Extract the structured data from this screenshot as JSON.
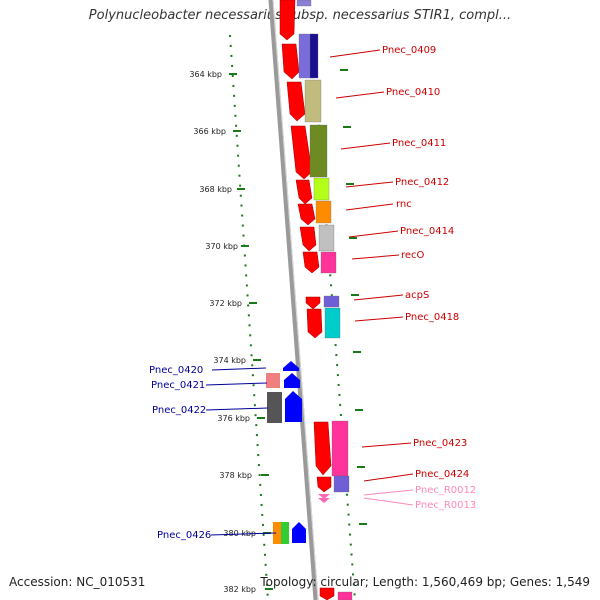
{
  "title": "Polynucleobacter necessarius subsp. necessarius STIR1, compl...",
  "footer": {
    "accession": "Accession: NC_010531",
    "summary": "Topology: circular; Length: 1,560,469 bp; Genes: 1,549"
  },
  "ticks": [
    "364 kbp",
    "366 kbp",
    "368 kbp",
    "370 kbp",
    "372 kbp",
    "374 kbp",
    "376 kbp",
    "378 kbp",
    "380 kbp",
    "382 kbp"
  ],
  "colors": {
    "forward_gene": "#ff0000",
    "reverse_gene": "#0000ff",
    "forward_label": "#cc0000",
    "reverse_label": "#000099",
    "rna_label": "#ff88bb",
    "dotted_track": "#1a7a1a",
    "backbone": "#999999"
  },
  "labels": {
    "pnec_0409": "Pnec_0409",
    "pnec_0410": "Pnec_0410",
    "pnec_0411": "Pnec_0411",
    "pnec_0412": "Pnec_0412",
    "rnc": "rnc",
    "pnec_0414": "Pnec_0414",
    "reco": "recO",
    "acps": "acpS",
    "pnec_0418": "Pnec_0418",
    "pnec_0420": "Pnec_0420",
    "pnec_0421": "Pnec_0421",
    "pnec_0422": "Pnec_0422",
    "pnec_0423": "Pnec_0423",
    "pnec_0424": "Pnec_0424",
    "pnec_r0012": "Pnec_R0012",
    "pnec_r0013": "Pnec_R0013",
    "pnec_0426": "Pnec_0426"
  }
}
